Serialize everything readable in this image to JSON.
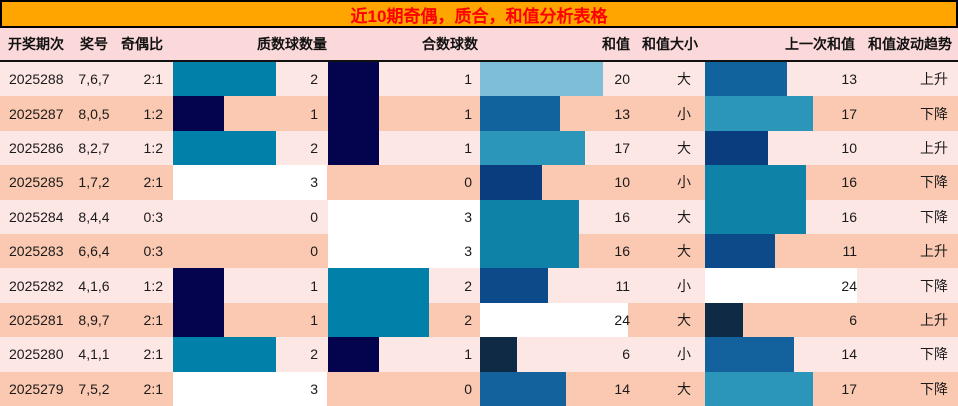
{
  "title": "近10期奇偶，质合，和值分析表格",
  "colors": {
    "title_bg": "#FFA500",
    "title_text": "#FF0000",
    "header_bg": "#fbd9da",
    "row_light": "#fde7e5",
    "row_dark": "#fbc9b1",
    "count_bar_colors": {
      "1": "#03034e",
      "2": "#0181a9",
      "3": "#ffffff"
    },
    "sum_bar_colors": {
      "6": "#0e2a44",
      "10": "#0a3d7d",
      "11": "#0d4a89",
      "13": "#11639e",
      "14": "#14629d",
      "16": "#0f82a8",
      "17": "#2b96b9",
      "20": "#7fbed9",
      "24": "#ffffff"
    }
  },
  "columns": [
    {
      "key": "period",
      "label": "开奖期次"
    },
    {
      "key": "nums",
      "label": "奖号"
    },
    {
      "key": "ratio",
      "label": "奇偶比"
    },
    {
      "key": "prime",
      "label": "质数球数量"
    },
    {
      "key": "comp",
      "label": "合数球数"
    },
    {
      "key": "sum",
      "label": "和值"
    },
    {
      "key": "size",
      "label": "和值大小"
    },
    {
      "key": "prev",
      "label": "上一次和值"
    },
    {
      "key": "trend",
      "label": "和值波动趋势"
    }
  ],
  "chart_data": {
    "type": "table",
    "title": "近10期奇偶，质合，和值分析表格",
    "count_scale_max": 3,
    "sum_scale_max": 24,
    "rows": [
      {
        "period": "2025288",
        "nums": "7,6,7",
        "ratio": "2:1",
        "prime": 2,
        "comp": 1,
        "sum": 20,
        "size": "大",
        "prev": 13,
        "trend": "上升"
      },
      {
        "period": "2025287",
        "nums": "8,0,5",
        "ratio": "1:2",
        "prime": 1,
        "comp": 1,
        "sum": 13,
        "size": "小",
        "prev": 17,
        "trend": "下降"
      },
      {
        "period": "2025286",
        "nums": "8,2,7",
        "ratio": "1:2",
        "prime": 2,
        "comp": 1,
        "sum": 17,
        "size": "大",
        "prev": 10,
        "trend": "上升"
      },
      {
        "period": "2025285",
        "nums": "1,7,2",
        "ratio": "2:1",
        "prime": 3,
        "comp": 0,
        "sum": 10,
        "size": "小",
        "prev": 16,
        "trend": "下降"
      },
      {
        "period": "2025284",
        "nums": "8,4,4",
        "ratio": "0:3",
        "prime": 0,
        "comp": 3,
        "sum": 16,
        "size": "大",
        "prev": 16,
        "trend": "下降"
      },
      {
        "period": "2025283",
        "nums": "6,6,4",
        "ratio": "0:3",
        "prime": 0,
        "comp": 3,
        "sum": 16,
        "size": "大",
        "prev": 11,
        "trend": "上升"
      },
      {
        "period": "2025282",
        "nums": "4,1,6",
        "ratio": "1:2",
        "prime": 1,
        "comp": 2,
        "sum": 11,
        "size": "小",
        "prev": 24,
        "trend": "下降"
      },
      {
        "period": "2025281",
        "nums": "8,9,7",
        "ratio": "2:1",
        "prime": 1,
        "comp": 2,
        "sum": 24,
        "size": "大",
        "prev": 6,
        "trend": "上升"
      },
      {
        "period": "2025280",
        "nums": "4,1,1",
        "ratio": "2:1",
        "prime": 2,
        "comp": 1,
        "sum": 6,
        "size": "小",
        "prev": 14,
        "trend": "下降"
      },
      {
        "period": "2025279",
        "nums": "7,5,2",
        "ratio": "2:1",
        "prime": 3,
        "comp": 0,
        "sum": 14,
        "size": "大",
        "prev": 17,
        "trend": "下降"
      }
    ]
  }
}
